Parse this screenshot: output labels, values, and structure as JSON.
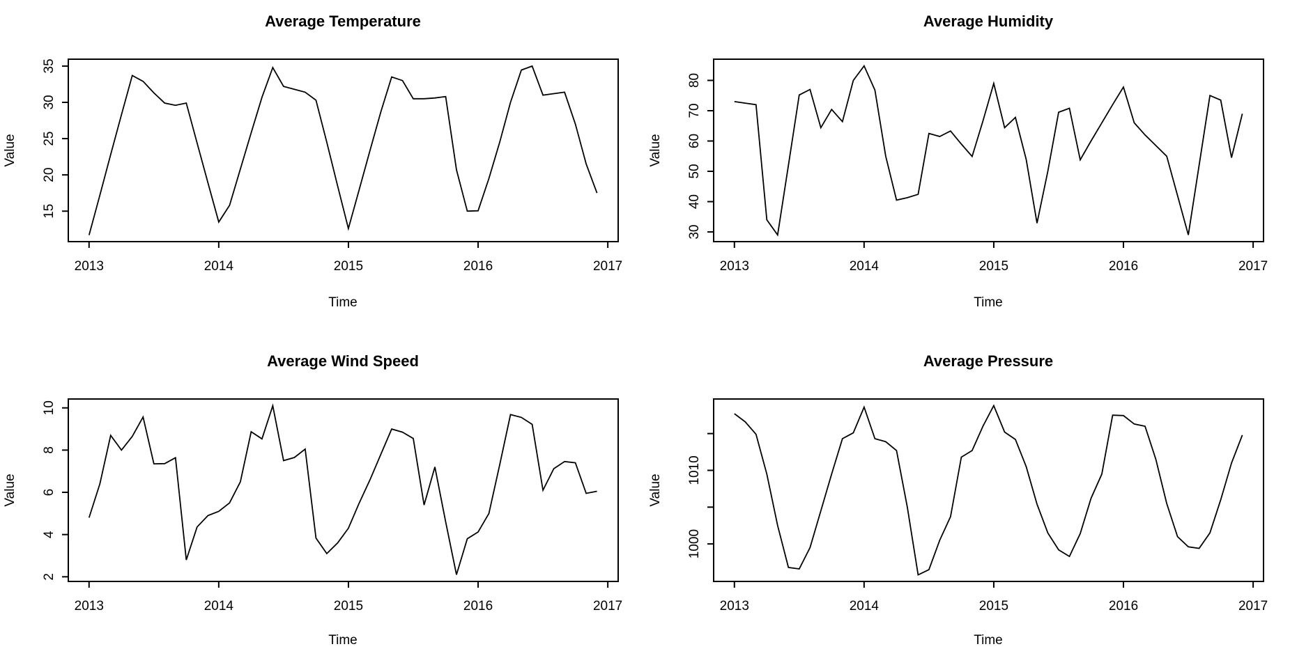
{
  "figure": {
    "background": "#ffffff",
    "line_color": "#000000",
    "text_color": "#000000",
    "rows": 2,
    "columns": 2
  },
  "chart_data": [
    {
      "type": "line",
      "title": "Average Temperature",
      "xlabel": "Time",
      "ylabel": "Value",
      "frequency": "monthly",
      "x_start": 2013.0,
      "x_step": 0.0833333,
      "xlim": [
        2012.84,
        2017.08
      ],
      "ylim": [
        10.8,
        35.95
      ],
      "x_ticks": [
        2013,
        2014,
        2015,
        2016,
        2017
      ],
      "x_tick_labels": [
        "2013",
        "2014",
        "2015",
        "2016",
        "2017"
      ],
      "y_ticks": [
        15,
        20,
        25,
        30,
        35
      ],
      "y_tick_labels": [
        "15",
        "20",
        "25",
        "30",
        "35"
      ],
      "grid": false,
      "legend": null,
      "values": [
        11.7,
        17.2,
        22.8,
        28.3,
        33.7,
        32.9,
        31.3,
        29.9,
        29.6,
        29.9,
        24.4,
        18.9,
        13.5,
        15.8,
        20.8,
        25.8,
        30.7,
        34.8,
        32.2,
        31.8,
        31.4,
        30.3,
        24.5,
        18.5,
        12.6,
        18.0,
        23.4,
        28.7,
        33.5,
        33.0,
        30.5,
        30.5,
        30.6,
        30.8,
        20.7,
        15.0,
        15.05,
        19.5,
        24.5,
        30.0,
        34.45,
        35.0,
        31.0,
        31.2,
        31.4,
        27.0,
        21.5,
        17.5
      ]
    },
    {
      "type": "line",
      "title": "Average Humidity",
      "xlabel": "Time",
      "ylabel": "Value",
      "frequency": "monthly",
      "x_start": 2013.0,
      "x_step": 0.0833333,
      "xlim": [
        2012.84,
        2017.08
      ],
      "ylim": [
        26.8,
        87.0
      ],
      "x_ticks": [
        2013,
        2014,
        2015,
        2016,
        2017
      ],
      "x_tick_labels": [
        "2013",
        "2014",
        "2015",
        "2016",
        "2017"
      ],
      "y_ticks": [
        30,
        40,
        50,
        60,
        70,
        80
      ],
      "y_tick_labels": [
        "30",
        "40",
        "50",
        "60",
        "70",
        "80"
      ],
      "grid": false,
      "legend": null,
      "values": [
        73,
        72.5,
        72,
        34,
        29,
        52,
        75.2,
        77,
        64.4,
        70.4,
        66.4,
        80,
        84.8,
        76.8,
        55,
        40.5,
        41.3,
        42.4,
        62.5,
        61.5,
        63.3,
        59,
        54.9,
        66.6,
        79,
        64.4,
        67.8,
        53.9,
        32.9,
        50,
        69.5,
        70.8,
        53.8,
        60,
        66,
        72,
        77.8,
        66,
        62,
        58.5,
        55,
        42,
        29,
        52,
        75,
        73.5,
        54.5,
        69
      ]
    },
    {
      "type": "line",
      "title": "Average Wind Speed",
      "xlabel": "Time",
      "ylabel": "Value",
      "frequency": "monthly",
      "x_start": 2013.0,
      "x_step": 0.0833333,
      "xlim": [
        2012.84,
        2017.08
      ],
      "ylim": [
        1.78,
        10.42
      ],
      "x_ticks": [
        2013,
        2014,
        2015,
        2016,
        2017
      ],
      "x_tick_labels": [
        "2013",
        "2014",
        "2015",
        "2016",
        "2017"
      ],
      "y_ticks": [
        2,
        4,
        6,
        8,
        10
      ],
      "y_tick_labels": [
        "2",
        "4",
        "6",
        "8",
        "10"
      ],
      "grid": false,
      "legend": null,
      "values": [
        4.8,
        6.4,
        8.7,
        8.0,
        8.65,
        9.57,
        7.35,
        7.36,
        7.64,
        2.8,
        4.36,
        4.9,
        5.1,
        5.5,
        6.5,
        8.87,
        8.53,
        10.1,
        7.5,
        7.65,
        8.05,
        3.83,
        3.1,
        3.6,
        4.3,
        5.5,
        6.6,
        7.8,
        9.0,
        8.85,
        8.55,
        5.4,
        7.2,
        4.6,
        2.1,
        3.8,
        4.12,
        5.0,
        7.3,
        9.68,
        9.55,
        9.22,
        6.1,
        7.12,
        7.46,
        7.4,
        5.95,
        6.05
      ]
    },
    {
      "type": "line",
      "title": "Average Pressure",
      "xlabel": "Time",
      "ylabel": "Value",
      "frequency": "monthly",
      "x_start": 2013.0,
      "x_step": 0.0833333,
      "xlim": [
        2012.84,
        2017.08
      ],
      "ylim": [
        994.9,
        1019.7
      ],
      "x_ticks": [
        2013,
        2014,
        2015,
        2016,
        2017
      ],
      "x_tick_labels": [
        "2013",
        "2014",
        "2015",
        "2016",
        "2017"
      ],
      "y_ticks": [
        1000,
        1005,
        1010,
        1015
      ],
      "y_tick_labels": [
        "1000",
        "",
        "1010",
        ""
      ],
      "grid": false,
      "legend": null,
      "values": [
        1017.7,
        1016.6,
        1014.9,
        1009.5,
        1002.5,
        996.8,
        996.6,
        999.5,
        1004.5,
        1009.5,
        1014.3,
        1015.1,
        1018.6,
        1014.3,
        1013.9,
        1012.7,
        1005.0,
        995.8,
        996.5,
        1000.5,
        1003.7,
        1011.8,
        1012.7,
        1016.0,
        1018.8,
        1015.2,
        1014.2,
        1010.5,
        1005.4,
        1001.5,
        999.2,
        998.3,
        1001.4,
        1006.2,
        1009.5,
        1017.5,
        1017.45,
        1016.3,
        1016.0,
        1011.5,
        1005.5,
        1001.0,
        999.6,
        999.4,
        1001.5,
        1006.0,
        1011.0,
        1014.8
      ]
    }
  ]
}
